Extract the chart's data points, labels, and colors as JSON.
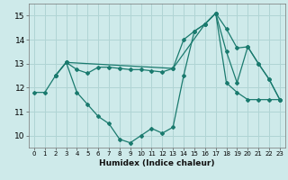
{
  "xlabel": "Humidex (Indice chaleur)",
  "bg_color": "#ceeaea",
  "grid_color": "#b0d4d4",
  "line_color": "#1a7a6e",
  "xlim": [
    -0.5,
    23.5
  ],
  "ylim": [
    9.5,
    15.5
  ],
  "yticks": [
    10,
    11,
    12,
    13,
    14,
    15
  ],
  "xticks": [
    0,
    1,
    2,
    3,
    4,
    5,
    6,
    7,
    8,
    9,
    10,
    11,
    12,
    13,
    14,
    15,
    16,
    17,
    18,
    19,
    20,
    21,
    22,
    23
  ],
  "line1_x": [
    0,
    1,
    2,
    3,
    4,
    5,
    6,
    7,
    8,
    9,
    10,
    11,
    12,
    13,
    14,
    15,
    16,
    17,
    18,
    19,
    20,
    21,
    22,
    23
  ],
  "line1_y": [
    11.8,
    11.8,
    12.5,
    13.05,
    11.8,
    11.3,
    10.8,
    10.5,
    9.85,
    9.7,
    10.0,
    10.3,
    10.1,
    10.35,
    12.5,
    14.35,
    14.65,
    15.1,
    12.2,
    11.8,
    11.5,
    11.5,
    11.5,
    11.5
  ],
  "line2_x": [
    2,
    3,
    13,
    16,
    17,
    18,
    19,
    20,
    21,
    22,
    23
  ],
  "line2_y": [
    12.5,
    13.05,
    12.8,
    14.65,
    15.1,
    13.5,
    12.2,
    13.7,
    13.0,
    12.35,
    11.5
  ],
  "line3_x": [
    2,
    3,
    4,
    5,
    6,
    7,
    8,
    9,
    10,
    11,
    12,
    13,
    14,
    15,
    16,
    17,
    18,
    19,
    20,
    21,
    22,
    23
  ],
  "line3_y": [
    12.5,
    13.05,
    12.75,
    12.6,
    12.85,
    12.85,
    12.8,
    12.75,
    12.75,
    12.7,
    12.65,
    12.8,
    14.0,
    14.35,
    14.65,
    15.1,
    14.45,
    13.65,
    13.7,
    13.0,
    12.35,
    11.5
  ]
}
